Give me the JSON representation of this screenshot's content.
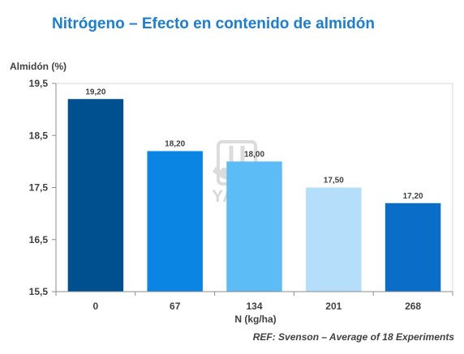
{
  "slide": {
    "title": "Nitrógeno – Efecto en contenido de almidón",
    "reference": "REF: Svenson – Average of 18 Experiments"
  },
  "watermark": {
    "text": "YARA",
    "icon": "yara-viking-ship-logo"
  },
  "chart_data": {
    "type": "bar",
    "categories": [
      "0",
      "67",
      "134",
      "201",
      "268"
    ],
    "values": [
      19.2,
      18.2,
      18.0,
      17.5,
      17.2
    ],
    "data_labels": [
      "19,20",
      "18,20",
      "18,00",
      "17,50",
      "17,20"
    ],
    "bar_colors": [
      "#004f8e",
      "#0a85e3",
      "#5cbcf5",
      "#b5defb",
      "#0a6ec9"
    ],
    "title": "",
    "ylabel": "Almidón (%)",
    "xlabel": "N (kg/ha)",
    "ylim": [
      15.5,
      19.5
    ],
    "yticks": [
      15.5,
      16.5,
      17.5,
      18.5,
      19.5
    ],
    "ytick_labels": [
      "15,5",
      "16,5",
      "17,5",
      "18,5",
      "19,5"
    ],
    "grid": false,
    "legend": "none"
  },
  "colors": {
    "title": "#1b7ed6",
    "text": "#404040",
    "axis": "#8c8c8c",
    "plot_border": "#d9d9d9"
  }
}
